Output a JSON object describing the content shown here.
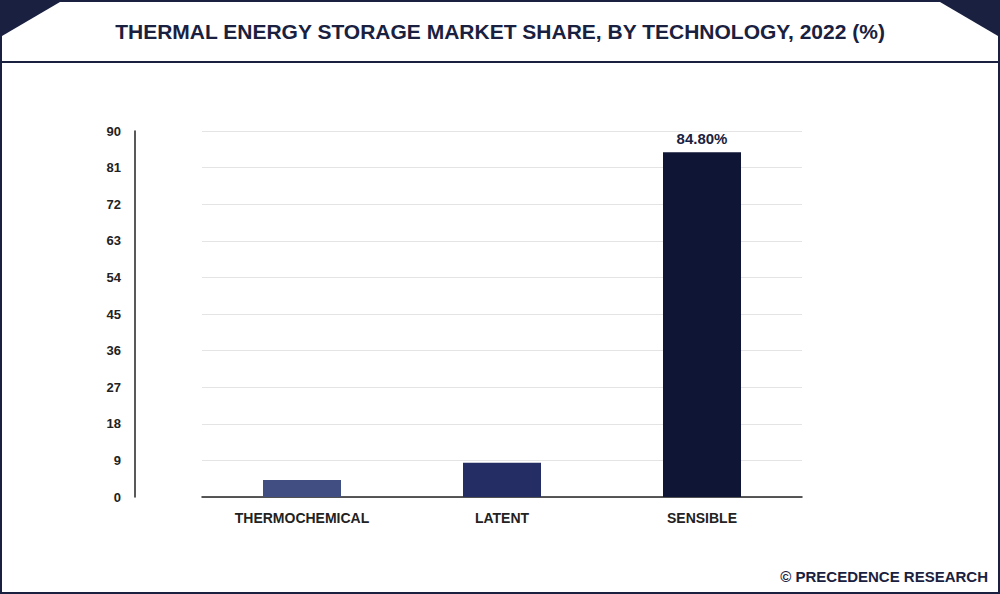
{
  "chart_data": {
    "type": "bar",
    "title": "THERMAL ENERGY STORAGE MARKET SHARE, BY TECHNOLOGY, 2022 (%)",
    "source": "© PRECEDENCE RESEARCH",
    "categories": [
      "THERMOCHEMICAL",
      "LATENT",
      "SENSIBLE"
    ],
    "values": [
      4.2,
      8.4,
      84.8
    ],
    "value_labels": [
      null,
      null,
      "84.80%"
    ],
    "data_labels": true,
    "colors": [
      "#404e82",
      "#252d65",
      "#0f1535"
    ],
    "ylim": [
      0,
      90
    ],
    "yticks": [
      0,
      9,
      18,
      27,
      36,
      45,
      54,
      63,
      72,
      81,
      90
    ],
    "grid": true
  }
}
